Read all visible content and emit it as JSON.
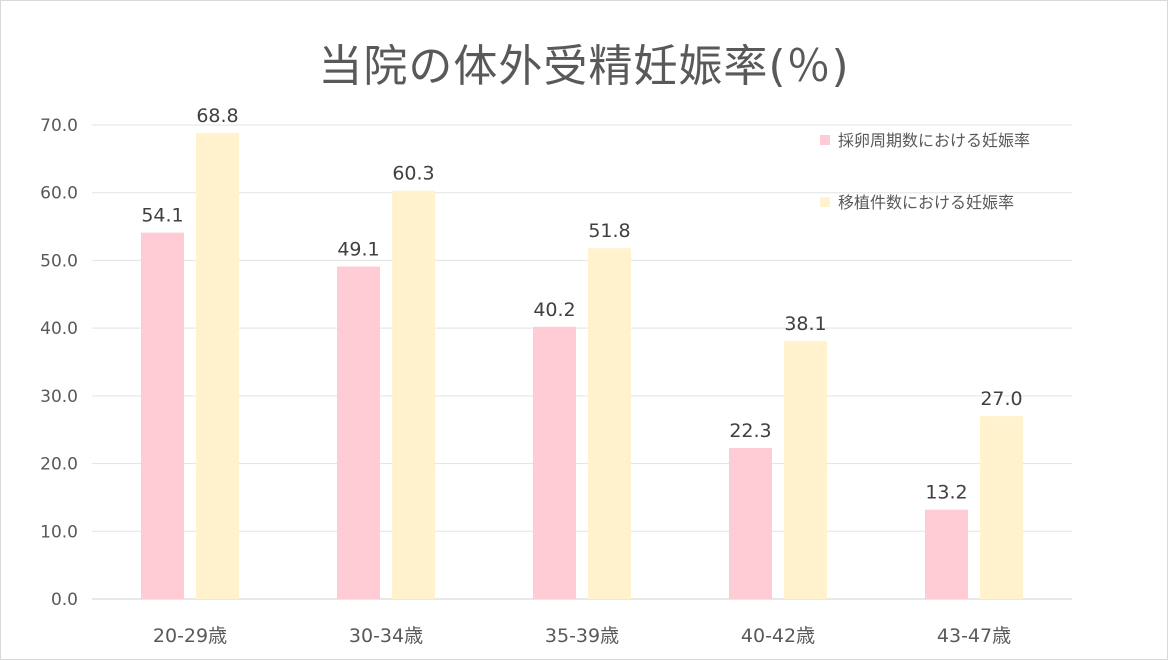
{
  "chart_data": {
    "type": "bar",
    "title": "当院の体外受精妊娠率(％)",
    "categories": [
      "20-29歳",
      "30-34歳",
      "35-39歳",
      "40-42歳",
      "43-47歳"
    ],
    "series": [
      {
        "name": "採卵周期数における妊娠率",
        "color": "#ffccd5",
        "values": [
          54.1,
          49.1,
          40.2,
          22.3,
          13.2
        ]
      },
      {
        "name": "移植件数における妊娠率",
        "color": "#fff2cc",
        "values": [
          68.8,
          60.3,
          51.8,
          38.1,
          27.0
        ]
      }
    ],
    "ylim": [
      0,
      70
    ],
    "yticks": [
      "0.0",
      "10.0",
      "20.0",
      "30.0",
      "40.0",
      "50.0",
      "60.0",
      "70.0"
    ],
    "grid": true,
    "legend_position": "top-right",
    "data_labels": true
  }
}
